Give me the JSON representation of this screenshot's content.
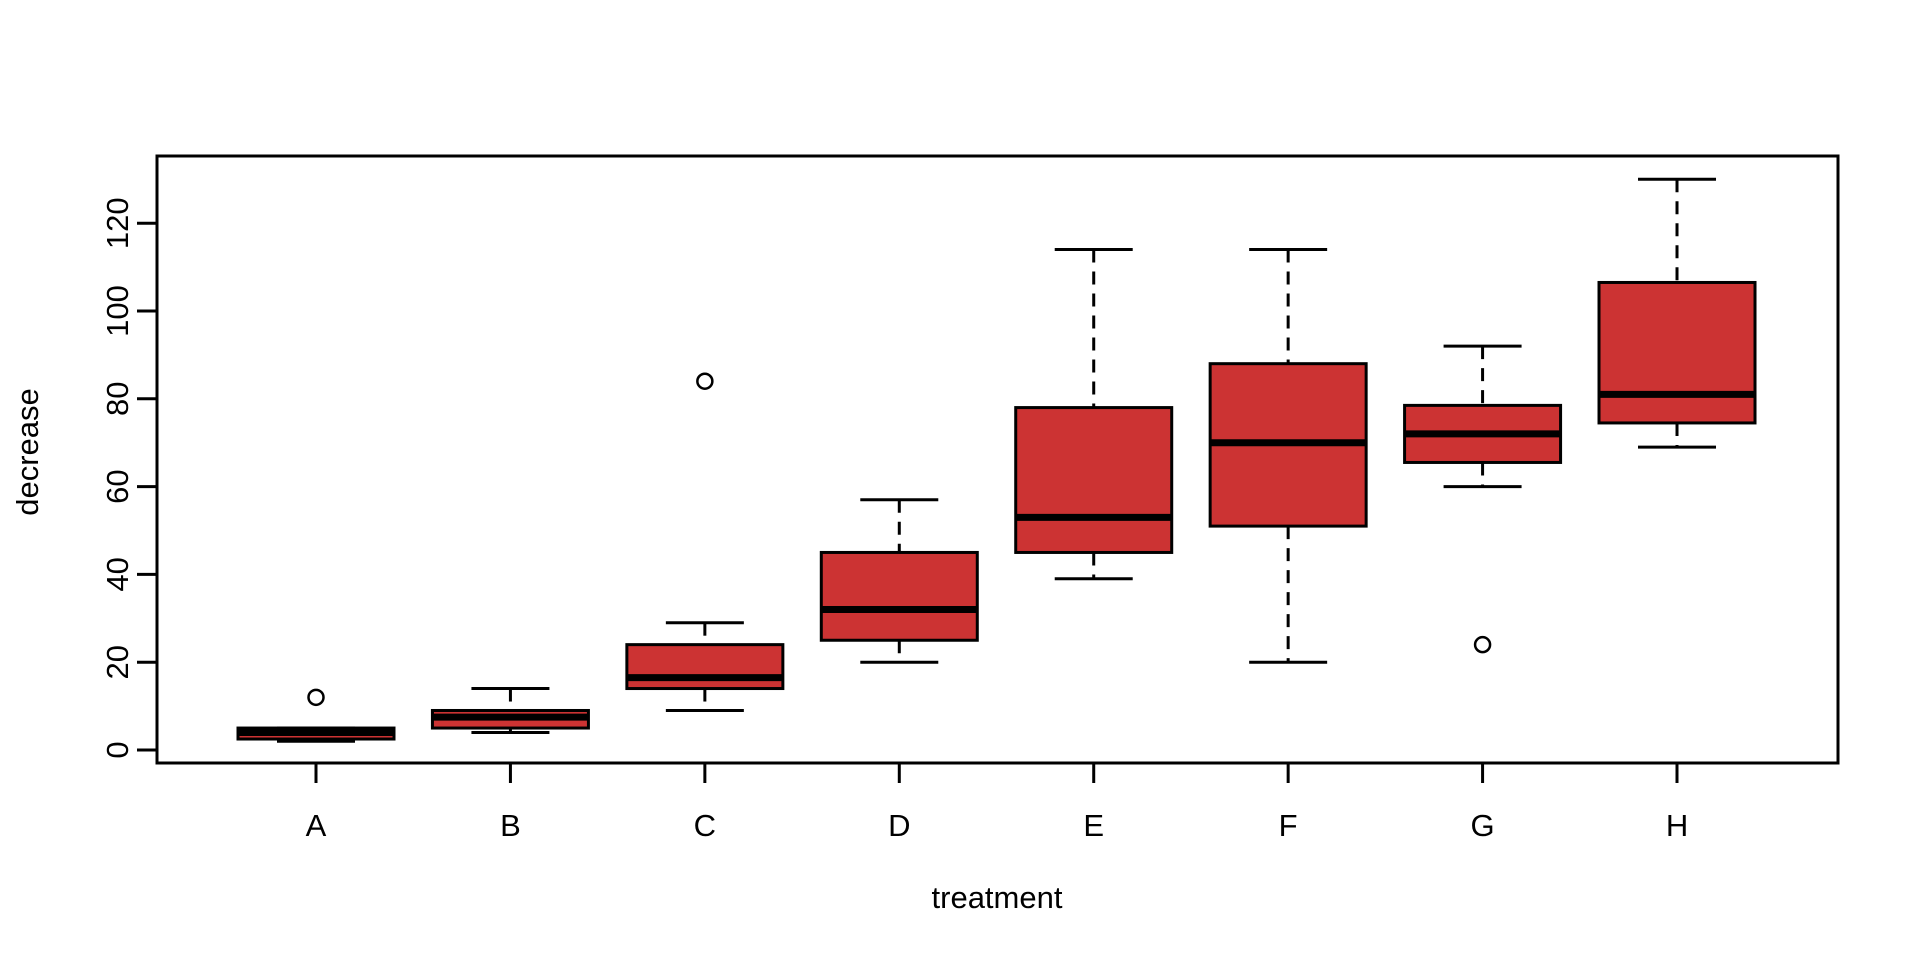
{
  "chart_data": {
    "type": "boxplot",
    "title": "",
    "xlabel": "treatment",
    "ylabel": "decrease",
    "categories": [
      "A",
      "B",
      "C",
      "D",
      "E",
      "F",
      "G",
      "H"
    ],
    "y_ticks": [
      0,
      20,
      40,
      60,
      80,
      100,
      120
    ],
    "ylim": [
      -3,
      135
    ],
    "grid": false,
    "legend": "none",
    "orientation": "vertical",
    "whisker_line_style": "dashed",
    "colors": {
      "box_fill": "#CC3333",
      "box_border": "#000000",
      "median": "#000000",
      "axis": "#000000",
      "background": "#FFFFFF",
      "outlier_stroke": "#000000",
      "outlier_fill": "#FFFFFF"
    },
    "series": [
      {
        "name": "A",
        "whisker_low": 2,
        "q1": 2.5,
        "median": 4,
        "q3": 5,
        "whisker_high": 5,
        "outliers": [
          12
        ]
      },
      {
        "name": "B",
        "whisker_low": 4,
        "q1": 5,
        "median": 7.5,
        "q3": 9,
        "whisker_high": 14,
        "outliers": []
      },
      {
        "name": "C",
        "whisker_low": 9,
        "q1": 14,
        "median": 16.5,
        "q3": 24,
        "whisker_high": 29,
        "outliers": [
          84
        ]
      },
      {
        "name": "D",
        "whisker_low": 20,
        "q1": 25,
        "median": 32,
        "q3": 45,
        "whisker_high": 57,
        "outliers": []
      },
      {
        "name": "E",
        "whisker_low": 39,
        "q1": 45,
        "median": 53,
        "q3": 78,
        "whisker_high": 114,
        "outliers": []
      },
      {
        "name": "F",
        "whisker_low": 20,
        "q1": 51,
        "median": 70,
        "q3": 88,
        "whisker_high": 114,
        "outliers": []
      },
      {
        "name": "G",
        "whisker_low": 60,
        "q1": 65.5,
        "median": 72,
        "q3": 78.5,
        "whisker_high": 92,
        "outliers": [
          24
        ]
      },
      {
        "name": "H",
        "whisker_low": 69,
        "q1": 74.5,
        "median": 81,
        "q3": 106.5,
        "whisker_high": 130,
        "outliers": []
      }
    ]
  }
}
